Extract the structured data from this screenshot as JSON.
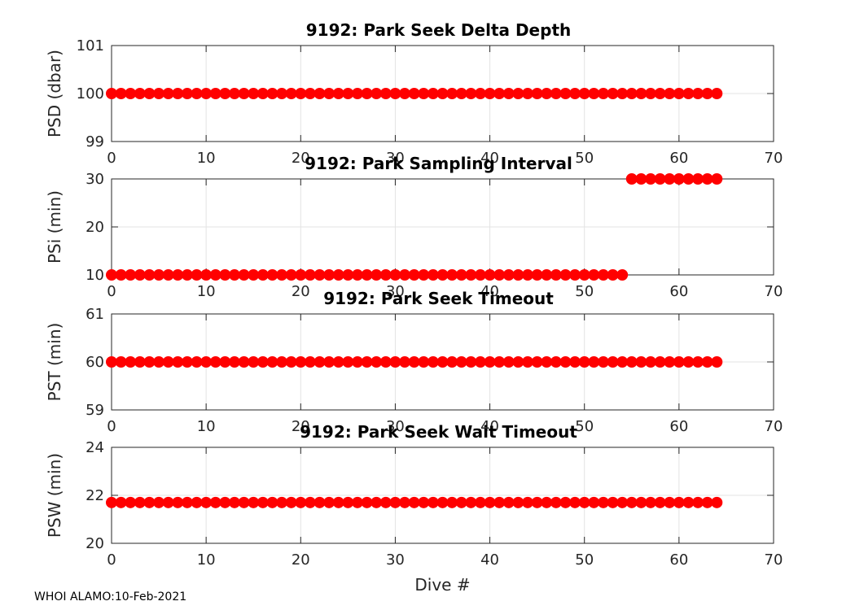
{
  "chart_data": [
    {
      "type": "scatter",
      "title": "9192: Park Seek Delta Depth",
      "ylabel": "PSD (dbar)",
      "xlabel": "",
      "xlim": [
        0,
        70
      ],
      "ylim": [
        99,
        101
      ],
      "xticks": [
        0,
        10,
        20,
        30,
        40,
        50,
        60,
        70
      ],
      "yticks": [
        99,
        100,
        101
      ],
      "grid": true,
      "marker_color": "#ff0000",
      "series": [
        {
          "name": "PSD",
          "segments": [
            {
              "x_start": 0,
              "x_end": 64,
              "value": 100
            }
          ]
        }
      ]
    },
    {
      "type": "scatter",
      "title": "9192: Park Sampling Interval",
      "ylabel": "PSi (min)",
      "xlabel": "",
      "xlim": [
        0,
        70
      ],
      "ylim": [
        10,
        30
      ],
      "xticks": [
        0,
        10,
        20,
        30,
        40,
        50,
        60,
        70
      ],
      "yticks": [
        10,
        20,
        30
      ],
      "grid": true,
      "marker_color": "#ff0000",
      "series": [
        {
          "name": "PSi",
          "segments": [
            {
              "x_start": 0,
              "x_end": 54,
              "value": 10
            },
            {
              "x_start": 55,
              "x_end": 64,
              "value": 30
            }
          ]
        }
      ]
    },
    {
      "type": "scatter",
      "title": "9192: Park Seek Timeout",
      "ylabel": "PST (min)",
      "xlabel": "",
      "xlim": [
        0,
        70
      ],
      "ylim": [
        59,
        61
      ],
      "xticks": [
        0,
        10,
        20,
        30,
        40,
        50,
        60,
        70
      ],
      "yticks": [
        59,
        60,
        61
      ],
      "grid": true,
      "marker_color": "#ff0000",
      "series": [
        {
          "name": "PST",
          "segments": [
            {
              "x_start": 0,
              "x_end": 64,
              "value": 60
            }
          ]
        }
      ]
    },
    {
      "type": "scatter",
      "title": "9192: Park Seek Wait Timeout",
      "ylabel": "PSW (min)",
      "xlabel": "Dive #",
      "xlim": [
        0,
        70
      ],
      "ylim": [
        20,
        24
      ],
      "xticks": [
        0,
        10,
        20,
        30,
        40,
        50,
        60,
        70
      ],
      "yticks": [
        20,
        22,
        24
      ],
      "grid": true,
      "marker_color": "#ff0000",
      "series": [
        {
          "name": "PSW",
          "segments": [
            {
              "x_start": 0,
              "x_end": 64,
              "value": 21.7
            }
          ]
        }
      ]
    }
  ],
  "footer": {
    "text": "WHOI ALAMO:10-Feb-2021"
  }
}
